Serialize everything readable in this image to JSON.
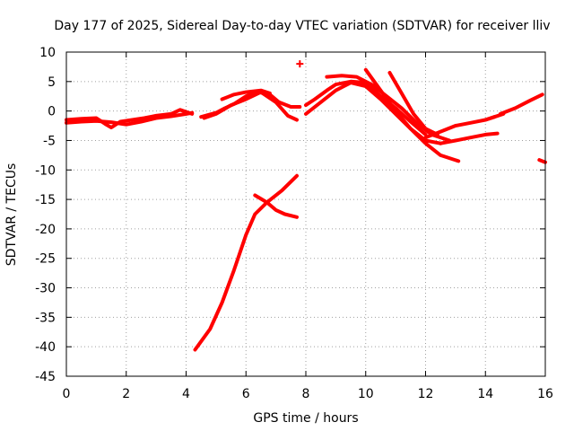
{
  "chart_data": {
    "type": "scatter",
    "title": "Day 177 of 2025, Sidereal Day-to-day VTEC variation (SDTVAR) for receiver lliv",
    "xlabel": "GPS time / hours",
    "ylabel": "SDTVAR / TECUs",
    "xlim": [
      0,
      16
    ],
    "ylim": [
      -45,
      10
    ],
    "xticks": [
      "0",
      "2",
      "4",
      "6",
      "8",
      "10",
      "12",
      "14",
      "16"
    ],
    "yticks": [
      "10",
      "5",
      "0",
      "-5",
      "-10",
      "-15",
      "-20",
      "-25",
      "-30",
      "-35",
      "-40",
      "-45"
    ],
    "grid": true,
    "marker_color": "#ff0000",
    "series": [
      {
        "name": "trace-1",
        "x": [
          0.0,
          0.5,
          1.0,
          1.3,
          1.5,
          1.8,
          2.2,
          2.6,
          3.0,
          3.5,
          3.8,
          4.2
        ],
        "y": [
          -1.5,
          -1.3,
          -1.2,
          -2.2,
          -2.8,
          -1.8,
          -1.5,
          -1.2,
          -0.8,
          -0.5,
          0.2,
          -0.5
        ]
      },
      {
        "name": "trace-2",
        "x": [
          0.0,
          0.5,
          1.0,
          1.5,
          2.0,
          2.5,
          3.0,
          3.5,
          4.0,
          4.2
        ],
        "y": [
          -2.0,
          -1.8,
          -1.7,
          -1.9,
          -2.3,
          -1.8,
          -1.2,
          -0.9,
          -0.5,
          -0.3
        ]
      },
      {
        "name": "trace-3",
        "x": [
          4.5,
          5.0,
          5.3,
          5.6,
          6.0,
          6.4,
          6.8,
          7.1,
          7.5,
          7.8
        ],
        "y": [
          -1.0,
          -0.3,
          0.5,
          1.2,
          2.5,
          3.2,
          2.8,
          1.5,
          0.7,
          0.7
        ]
      },
      {
        "name": "trace-4",
        "x": [
          4.6,
          5.0,
          5.5,
          6.0,
          6.5,
          7.0,
          7.4,
          7.7
        ],
        "y": [
          -1.2,
          -0.5,
          1.0,
          2.0,
          3.2,
          1.5,
          -0.8,
          -1.5
        ]
      },
      {
        "name": "trace-5",
        "x": [
          5.2,
          5.6,
          6.0,
          6.5,
          6.8
        ],
        "y": [
          2.0,
          2.8,
          3.2,
          3.5,
          3.0
        ]
      },
      {
        "name": "trace-6",
        "x": [
          4.3,
          4.8,
          5.2,
          5.6,
          6.0,
          6.3,
          6.7,
          7.2,
          7.7
        ],
        "y": [
          -40.5,
          -37.0,
          -32.5,
          -27.0,
          -21.0,
          -17.5,
          -15.5,
          -13.5,
          -11.0
        ]
      },
      {
        "name": "trace-7",
        "x": [
          6.3,
          6.7,
          7.0,
          7.3,
          7.7
        ],
        "y": [
          -14.3,
          -15.5,
          -16.8,
          -17.5,
          -18.0
        ]
      },
      {
        "name": "trace-8",
        "x": [
          8.0,
          8.3,
          8.7,
          9.0,
          9.5,
          10.0,
          10.5,
          11.0,
          11.5,
          12.0
        ],
        "y": [
          1.0,
          2.0,
          3.5,
          4.5,
          5.0,
          4.8,
          2.5,
          0.5,
          -1.8,
          -4.0
        ]
      },
      {
        "name": "trace-9",
        "x": [
          8.0,
          8.5,
          9.0,
          9.5,
          10.0,
          10.5,
          11.0,
          11.5,
          12.0,
          12.5,
          13.1
        ],
        "y": [
          -0.5,
          1.5,
          3.5,
          4.8,
          4.2,
          2.0,
          -0.5,
          -3.0,
          -5.5,
          -7.5,
          -8.5
        ]
      },
      {
        "name": "trace-10",
        "x": [
          8.7,
          9.2,
          9.7,
          10.2,
          10.7,
          11.2,
          11.7,
          12.2,
          12.8
        ],
        "y": [
          5.8,
          6.0,
          5.8,
          4.5,
          2.5,
          0.5,
          -2.0,
          -4.0,
          -5.0
        ]
      },
      {
        "name": "trace-11",
        "x": [
          10.0,
          10.5,
          11.0,
          11.5,
          12.0,
          12.5
        ],
        "y": [
          7.0,
          3.5,
          0.0,
          -3.0,
          -5.0,
          -5.5
        ]
      },
      {
        "name": "trace-12",
        "x": [
          10.8,
          11.2,
          11.6,
          12.0,
          12.4
        ],
        "y": [
          6.5,
          3.0,
          -0.5,
          -3.0,
          -4.0
        ]
      },
      {
        "name": "trace-13",
        "x": [
          12.0,
          12.5,
          13.0,
          13.5,
          14.0,
          14.3
        ],
        "y": [
          -4.5,
          -3.5,
          -2.5,
          -2.0,
          -1.5,
          -1.0
        ]
      },
      {
        "name": "trace-14",
        "x": [
          12.5,
          13.0,
          13.5,
          14.0,
          14.4
        ],
        "y": [
          -5.5,
          -5.0,
          -4.5,
          -4.0,
          -3.8
        ]
      },
      {
        "name": "trace-15",
        "x": [
          14.5,
          15.0,
          15.5,
          15.9
        ],
        "y": [
          -0.5,
          0.5,
          1.8,
          2.8
        ]
      },
      {
        "name": "trace-16",
        "x": [
          14.0,
          14.3,
          14.6
        ],
        "y": [
          -1.5,
          -1.0,
          -0.5
        ]
      },
      {
        "name": "trace-17",
        "x": [
          15.8,
          16.0
        ],
        "y": [
          -8.3,
          -8.7
        ]
      },
      {
        "name": "outlier",
        "x": [
          7.8
        ],
        "y": [
          8.0
        ]
      }
    ]
  }
}
